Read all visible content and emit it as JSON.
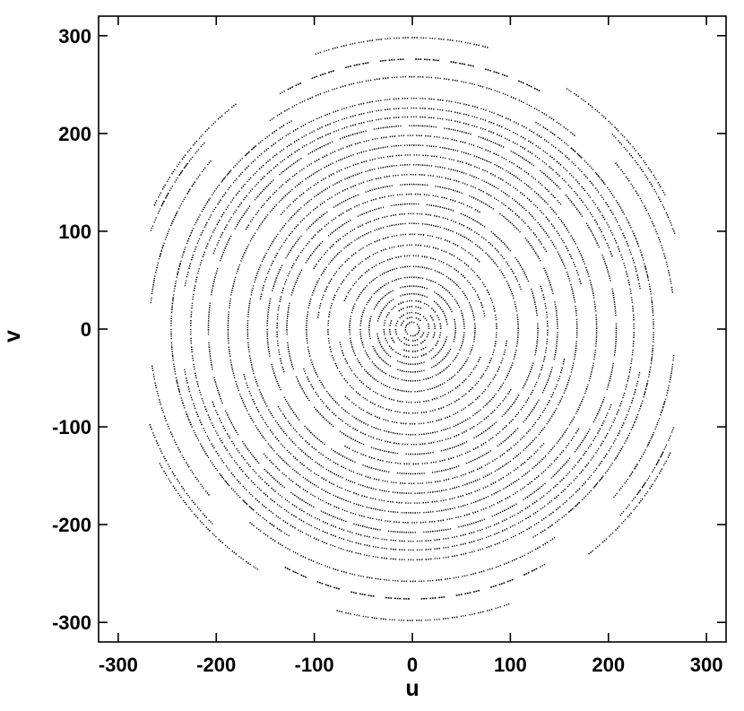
{
  "chart_data": {
    "type": "scatter",
    "title": "",
    "xlabel": "u",
    "ylabel": "v",
    "xlim": [
      -320,
      320
    ],
    "ylim": [
      -320,
      320
    ],
    "xticks": [
      -300,
      -200,
      -100,
      0,
      100,
      200,
      300
    ],
    "yticks": [
      -300,
      -200,
      -100,
      0,
      100,
      200,
      300
    ],
    "xtick_labels": [
      "-300",
      "-200",
      "-100",
      "0",
      "100",
      "200",
      "300"
    ],
    "ytick_labels": [
      "-300",
      "-200",
      "-100",
      "0",
      "100",
      "200",
      "300"
    ],
    "grid": false,
    "legend": "none",
    "marker_color": "#000000",
    "description_of_distribution": "",
    "series": [
      {
        "values_note": "",
        "tracks": [
          {
            "r": 298,
            "arcs": [
              [
                75,
                110
              ],
              [
                255,
                290
              ]
            ]
          },
          {
            "r": 292,
            "arcs": [
              [
                28,
                58
              ],
              [
                128,
                155
              ],
              [
                208,
                238
              ],
              [
                308,
                335
              ]
            ]
          },
          {
            "r": 285,
            "arcs": [
              [
                20,
                45
              ],
              [
                140,
                160
              ],
              [
                200,
                225
              ],
              [
                318,
                338
              ]
            ]
          },
          {
            "r": 276,
            "arcs": [
              [
                60,
                118
              ],
              [
                242,
                300
              ]
            ]
          },
          {
            "r": 268,
            "arcs": [
              [
                8,
                40
              ],
              [
                140,
                175
              ],
              [
                188,
                220
              ],
              [
                322,
                352
              ]
            ]
          },
          {
            "r": 258,
            "arcs": [
              [
                50,
                125
              ],
              [
                230,
                305
              ]
            ]
          },
          {
            "r": 246,
            "arcs": [
              [
                0,
                60
              ],
              [
                120,
                240
              ],
              [
                300,
                360
              ]
            ]
          },
          {
            "r": 236,
            "arcs": [
              [
                10,
                170
              ],
              [
                190,
                350
              ]
            ]
          },
          {
            "r": 226,
            "arcs": [
              [
                0,
                360
              ]
            ]
          },
          {
            "r": 217,
            "arcs": [
              [
                20,
                160
              ],
              [
                200,
                340
              ]
            ]
          },
          {
            "r": 208,
            "arcs": [
              [
                0,
                360
              ]
            ]
          },
          {
            "r": 198,
            "arcs": [
              [
                40,
                150
              ],
              [
                220,
                330
              ]
            ]
          },
          {
            "r": 188,
            "arcs": [
              [
                0,
                360
              ]
            ]
          },
          {
            "r": 178,
            "arcs": [
              [
                15,
                140
              ],
              [
                195,
                320
              ]
            ]
          },
          {
            "r": 168,
            "arcs": [
              [
                0,
                360
              ]
            ]
          },
          {
            "r": 158,
            "arcs": [
              [
                30,
                170
              ],
              [
                210,
                350
              ]
            ]
          },
          {
            "r": 148,
            "arcs": [
              [
                0,
                360
              ]
            ]
          },
          {
            "r": 138,
            "arcs": [
              [
                60,
                200
              ],
              [
                240,
                380
              ]
            ]
          },
          {
            "r": 128,
            "arcs": [
              [
                0,
                360
              ]
            ]
          },
          {
            "r": 118,
            "arcs": [
              [
                20,
                150
              ],
              [
                200,
                330
              ]
            ]
          },
          {
            "r": 108,
            "arcs": [
              [
                0,
                360
              ]
            ]
          },
          {
            "r": 97,
            "arcs": [
              [
                45,
                175
              ],
              [
                225,
                355
              ]
            ]
          },
          {
            "r": 86,
            "arcs": [
              [
                0,
                360
              ]
            ]
          },
          {
            "r": 75,
            "arcs": [
              [
                10,
                160
              ],
              [
                190,
                340
              ]
            ]
          },
          {
            "r": 64,
            "arcs": [
              [
                0,
                360
              ]
            ]
          },
          {
            "r": 53,
            "arcs": [
              [
                0,
                360
              ]
            ]
          },
          {
            "r": 44,
            "arcs": [
              [
                0,
                360
              ]
            ]
          },
          {
            "r": 36,
            "arcs": [
              [
                0,
                360
              ]
            ]
          },
          {
            "r": 29,
            "arcs": [
              [
                0,
                360
              ]
            ]
          },
          {
            "r": 23,
            "arcs": [
              [
                0,
                360
              ]
            ]
          },
          {
            "r": 17,
            "arcs": [
              [
                0,
                360
              ]
            ]
          },
          {
            "r": 12,
            "arcs": [
              [
                0,
                360
              ]
            ]
          },
          {
            "r": 7,
            "arcs": [
              [
                0,
                360
              ]
            ]
          }
        ]
      }
    ]
  }
}
